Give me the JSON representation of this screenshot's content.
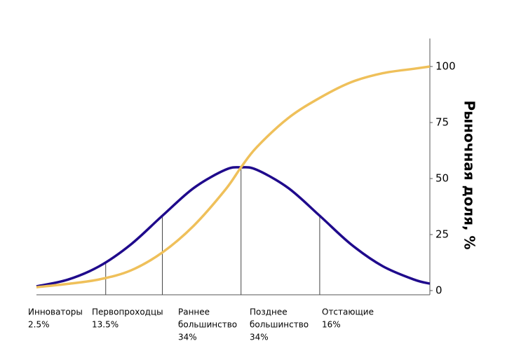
{
  "chart_data": {
    "type": "line",
    "y_label": "Рыночная доля, %",
    "x": [
      -2.6,
      -2.2,
      -1.8,
      -1.4,
      -1,
      -0.6,
      -0.2,
      0,
      0.2,
      0.6,
      1,
      1.4,
      1.8,
      2.2,
      2.4
    ],
    "xlim": [
      -2.6,
      2.4
    ],
    "series": [
      {
        "color": "#1f0a8c",
        "values": [
          1.9,
          4.9,
          10.9,
          20.6,
          33.4,
          45.8,
          53.9,
          55,
          53.9,
          45.8,
          33.4,
          20.6,
          10.9,
          4.9,
          3.1
        ]
      },
      {
        "color": "#efc05a",
        "values": [
          1.5,
          3,
          5,
          9,
          17,
          29,
          45,
          55,
          64,
          77,
          86,
          93,
          97,
          99,
          100
        ]
      }
    ],
    "dividers": [
      -1.72,
      -1,
      0,
      1
    ],
    "ylim": [
      0,
      112
    ],
    "yticks": [
      0,
      25,
      50,
      75,
      100
    ],
    "segments": [
      {
        "lines": [
          "Инноваторы"
        ],
        "share": "2.5%"
      },
      {
        "lines": [
          "Первопроходцы"
        ],
        "share": "13.5%"
      },
      {
        "lines": [
          "Раннее",
          "большинство"
        ],
        "share": "34%"
      },
      {
        "lines": [
          "Позднее",
          "большинство"
        ],
        "share": "34%"
      },
      {
        "lines": [
          "Отстающие"
        ],
        "share": "16%"
      }
    ]
  }
}
